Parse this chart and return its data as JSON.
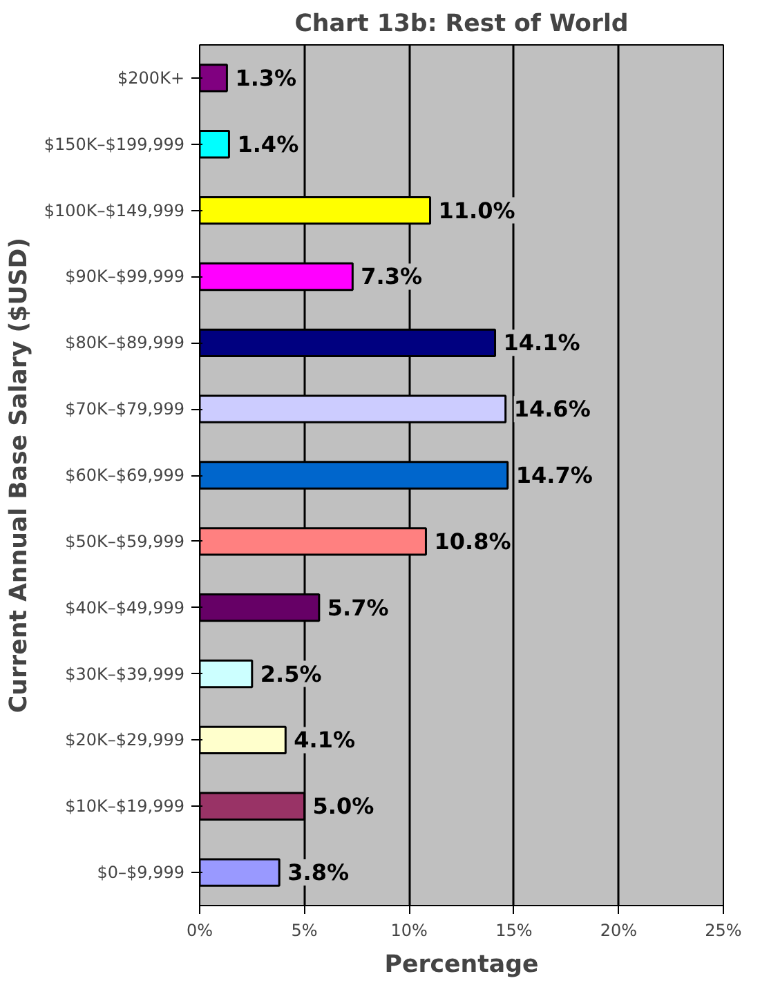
{
  "chart_data": {
    "type": "bar",
    "orientation": "horizontal",
    "title": "Chart 13b: Rest of World",
    "xlabel": "Percentage",
    "ylabel": "Current Annual Base Salary ($USD)",
    "categories": [
      "$200K+",
      "$150K–$199,999",
      "$100K–$149,999",
      "$90K–$99,999",
      "$80K–$89,999",
      "$70K–$79,999",
      "$60K–$69,999",
      "$50K–$59,999",
      "$40K–$49,999",
      "$30K–$39,999",
      "$20K–$29,999",
      "$10K–$19,999",
      "$0–$9,999"
    ],
    "values": [
      1.3,
      1.4,
      11.0,
      7.3,
      14.1,
      14.6,
      14.7,
      10.8,
      5.7,
      2.5,
      4.1,
      5.0,
      3.8
    ],
    "colors": [
      "#800080",
      "#00ffff",
      "#ffff00",
      "#ff00ff",
      "#000080",
      "#ccccff",
      "#0066cc",
      "#ff8080",
      "#660066",
      "#ccffff",
      "#ffffcc",
      "#993366",
      "#9999ff"
    ],
    "value_labels": [
      "1.3%",
      "1.4%",
      "11.0%",
      "7.3%",
      "14.1%",
      "14.6%",
      "14.7%",
      "10.8%",
      "5.7%",
      "2.5%",
      "4.1%",
      "5.0%",
      "3.8%"
    ],
    "xlim": [
      0,
      25
    ],
    "xticks": [
      {
        "value": 0,
        "label": "0%"
      },
      {
        "value": 5,
        "label": "5%"
      },
      {
        "value": 10,
        "label": "10%"
      },
      {
        "value": 15,
        "label": "15%"
      },
      {
        "value": 20,
        "label": "20%"
      },
      {
        "value": 25,
        "label": "25%"
      }
    ],
    "grid": "x",
    "legend": false
  }
}
